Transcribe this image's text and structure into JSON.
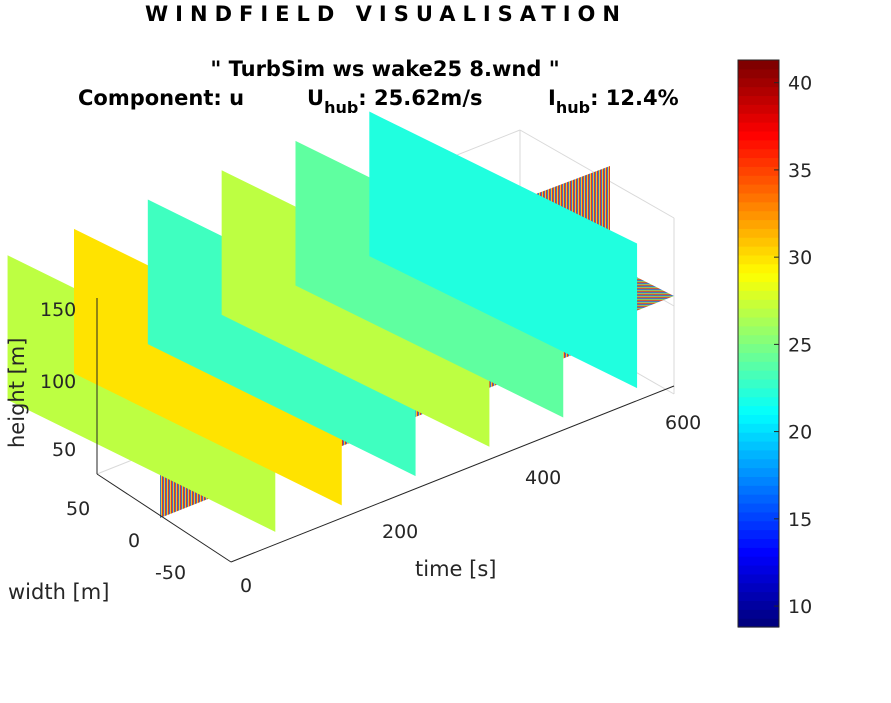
{
  "title": "WINDFIELD VISUALISATION",
  "subtitle": {
    "file": "\" TurbSim ws wake25 8.wnd \"",
    "component_label": "Component: u",
    "u_main": "U",
    "u_sub": "hub",
    "u_value": ": 25.62m/s",
    "i_main": "I",
    "i_sub": "hub",
    "i_value": ": 12.4%"
  },
  "colors": {
    "colormap": "jet",
    "axis": "#262626",
    "grid": "#d9d9d9"
  },
  "chart_data": {
    "type": "heatmap",
    "title": "WINDFIELD VISUALISATION",
    "xlabel": "time [s]",
    "ylabel": "width [m]",
    "zlabel": "height [m]",
    "x_ticks": [
      "0",
      "200",
      "400",
      "600"
    ],
    "y_ticks": [
      "-50",
      "0",
      "50"
    ],
    "z_ticks": [
      "50",
      "100",
      "150"
    ],
    "xlim": [
      0,
      660
    ],
    "ylim": [
      -75,
      75
    ],
    "zlim": [
      25,
      165
    ],
    "colorbar": {
      "ticks": [
        "10",
        "15",
        "20",
        "25",
        "30",
        "35",
        "40"
      ],
      "range": [
        8.8,
        41.3
      ],
      "colormap": "jet"
    },
    "slices": [
      {
        "orientation": "y-z",
        "time": 60,
        "mean_u": 27
      },
      {
        "orientation": "y-z",
        "time": 150,
        "mean_u": 30
      },
      {
        "orientation": "y-z",
        "time": 250,
        "mean_u": 23
      },
      {
        "orientation": "y-z",
        "time": 350,
        "mean_u": 27
      },
      {
        "orientation": "y-z",
        "time": 450,
        "mean_u": 24
      },
      {
        "orientation": "y-z",
        "time": 550,
        "mean_u": 22
      },
      {
        "orientation": "x-z",
        "width": 0,
        "mean_u": 25
      },
      {
        "orientation": "x-y",
        "height": 100,
        "mean_u": 25
      }
    ],
    "grid": true
  }
}
